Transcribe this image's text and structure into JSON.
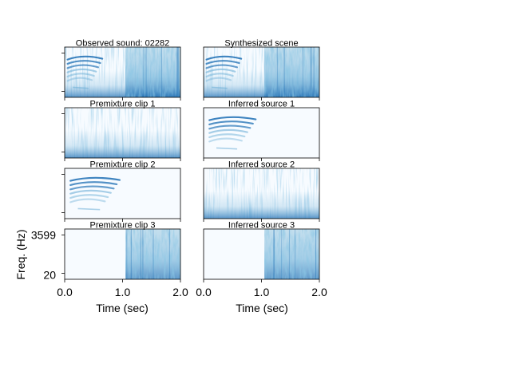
{
  "chart_data": {
    "type": "heatmap",
    "description_kind": "spectrogram grid (4 rows x 2 columns)",
    "colormap": [
      "#f7fbff",
      "#c6dbef",
      "#6baed6",
      "#2171b5",
      "#08306b"
    ],
    "xlim": [
      0.0,
      2.0
    ],
    "x_ticks": [
      0.0,
      1.0,
      2.0
    ],
    "x_tick_labels": [
      "0.0",
      "1.0",
      "2.0"
    ],
    "y_ticks": [
      20,
      3599
    ],
    "y_tick_labels": [
      "20",
      "3599"
    ],
    "xlabel": "Time (sec)",
    "ylabel": "Freq. (Hz)",
    "panels": [
      {
        "row": 0,
        "col": 0,
        "title": "Observed sound: 02282",
        "noise": [
          0.0,
          2.0
        ],
        "dense": [
          1.05,
          2.0
        ],
        "harmonics": [
          0.05,
          0.65
        ]
      },
      {
        "row": 0,
        "col": 1,
        "title": "Synthesized scene",
        "noise": [
          0.0,
          2.0
        ],
        "dense": [
          1.05,
          2.0
        ],
        "harmonics": [
          0.05,
          0.65
        ]
      },
      {
        "row": 1,
        "col": 0,
        "title": "Premixture clip 1",
        "noise": [
          0.0,
          2.0
        ],
        "dense": null,
        "harmonics": null
      },
      {
        "row": 1,
        "col": 1,
        "title": "Inferred source 1",
        "noise": null,
        "dense": null,
        "harmonics": [
          0.1,
          0.9
        ]
      },
      {
        "row": 2,
        "col": 0,
        "title": "Premixture clip 2",
        "noise": null,
        "dense": null,
        "harmonics": [
          0.1,
          0.95
        ]
      },
      {
        "row": 2,
        "col": 1,
        "title": "Inferred source 2",
        "noise": [
          0.0,
          2.0
        ],
        "dense": null,
        "harmonics": null
      },
      {
        "row": 3,
        "col": 0,
        "title": "Premixture clip 3",
        "noise": null,
        "dense": [
          1.05,
          2.0
        ],
        "harmonics": null
      },
      {
        "row": 3,
        "col": 1,
        "title": "Inferred source 3",
        "noise": null,
        "dense": [
          1.05,
          2.0
        ],
        "harmonics": null
      }
    ]
  }
}
